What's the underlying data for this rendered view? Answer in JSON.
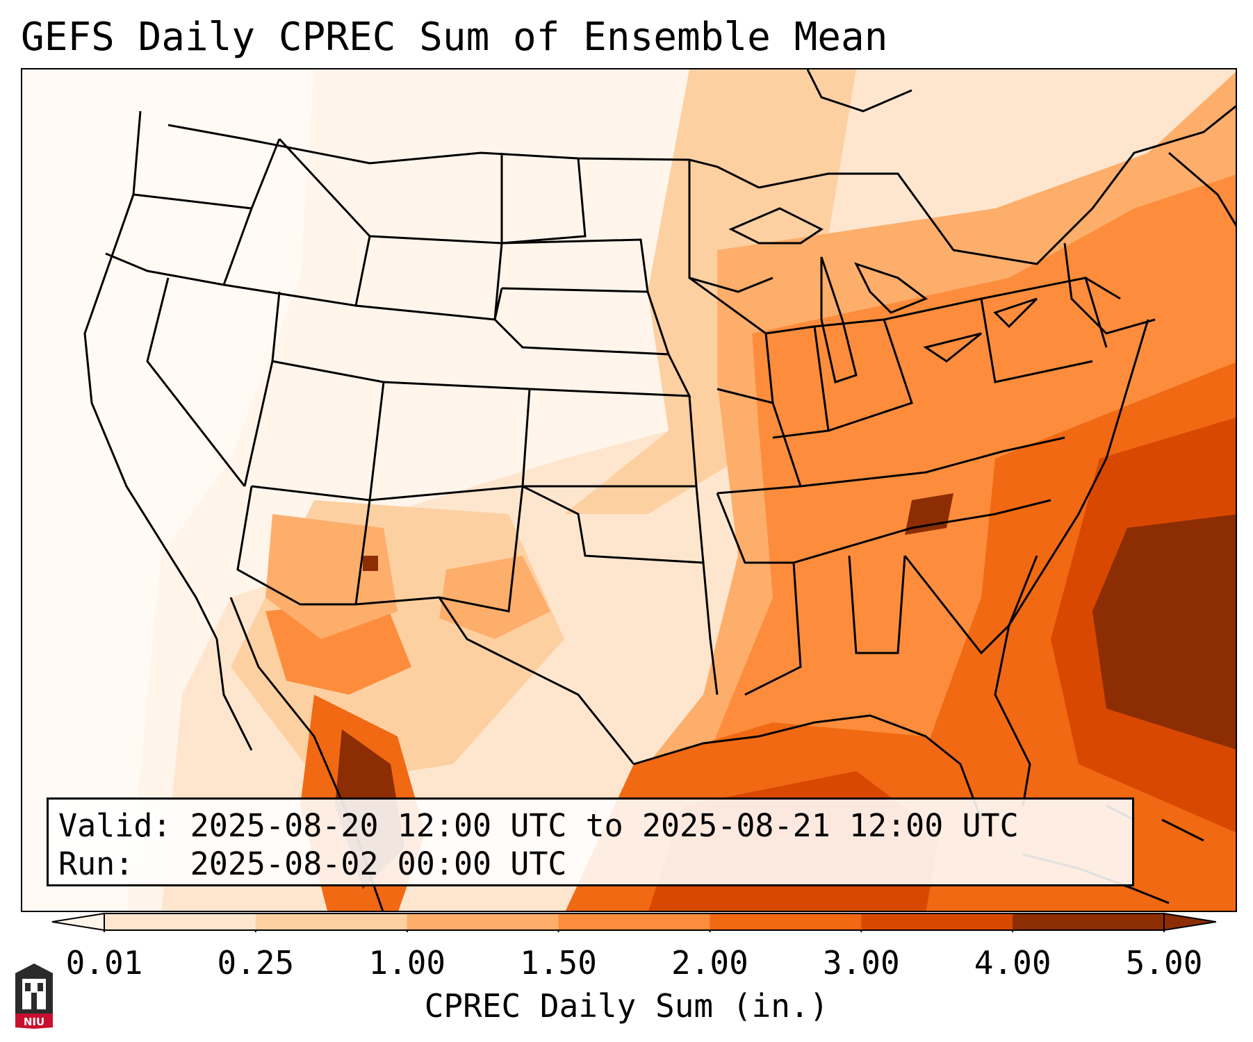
{
  "title": "GEFS Daily CPREC Sum of Ensemble Mean",
  "info": {
    "valid_label": "Valid:",
    "valid_value": "2025-08-20 12:00 UTC to 2025-08-21 12:00 UTC",
    "run_label": "Run:",
    "run_value": "2025-08-02 00:00 UTC"
  },
  "colorbar": {
    "label": "CPREC Daily Sum (in.)",
    "ticks": [
      "0.01",
      "0.25",
      "1.00",
      "1.50",
      "2.00",
      "3.00",
      "4.00",
      "5.00"
    ],
    "colors": [
      "#fff5eb",
      "#fee6ce",
      "#fdd0a2",
      "#fdae6b",
      "#fd8d3c",
      "#f16913",
      "#d94801",
      "#8c2d04"
    ],
    "extend": "both"
  },
  "logo": {
    "text": "NIU",
    "color": "#c8102e"
  },
  "map_icons": [
    "us-state-boundaries",
    "coastline",
    "great-lakes"
  ]
}
